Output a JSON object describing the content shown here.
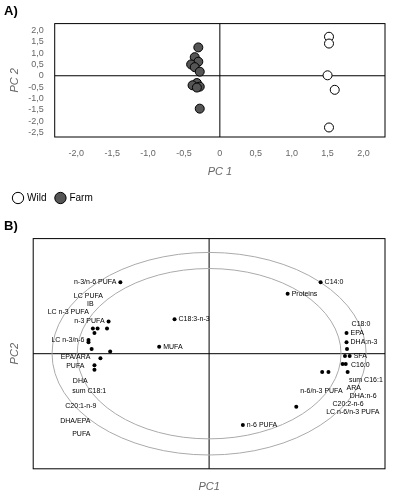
{
  "chart_data": [
    {
      "type": "scatter",
      "title": "A)",
      "xlabel": "PC 1",
      "ylabel": "PC 2",
      "series": [
        {
          "name": "Wild",
          "color": "#ffffff",
          "x": [
            1.52,
            1.52,
            1.5,
            1.6,
            1.52
          ],
          "values": [
            1.72,
            1.42,
            0.02,
            -0.62,
            -2.28
          ]
        },
        {
          "name": "Farm",
          "color": "#555555",
          "x": [
            -0.3,
            -0.35,
            -0.3,
            -0.4,
            -0.35,
            -0.28,
            -0.32,
            -0.38,
            -0.28,
            -0.32,
            -0.28
          ],
          "values": [
            1.25,
            0.82,
            0.62,
            0.5,
            0.38,
            0.18,
            -0.32,
            -0.42,
            -0.48,
            -0.52,
            -1.45
          ]
        }
      ],
      "xlim": [
        -2.3,
        2.3
      ],
      "xticks": [
        {
          "value": -2,
          "label": "-2,0"
        },
        {
          "value": -1.5,
          "label": "-1,5"
        },
        {
          "value": -1,
          "label": "-1,0"
        },
        {
          "value": -0.5,
          "label": "-0,5"
        },
        0,
        {
          "value": 0.5,
          "label": "0,5"
        },
        {
          "value": 1,
          "label": "1,0"
        },
        {
          "value": 1.5,
          "label": "1,5"
        },
        {
          "value": 2,
          "label": "2,0"
        }
      ],
      "ylim": [
        -2.7,
        2.3
      ],
      "yticks": [
        {
          "value": -2.5,
          "label": "-2,5"
        },
        {
          "value": -2,
          "label": "-2,0"
        },
        {
          "value": -1.5,
          "label": "-1,5"
        },
        {
          "value": -1,
          "label": "-1,0"
        },
        {
          "value": -0.5,
          "label": "-0,5"
        },
        0,
        {
          "value": 0.5,
          "label": "0,5"
        },
        {
          "value": 1,
          "label": "1,0"
        },
        {
          "value": 1.5,
          "label": "1,5"
        },
        {
          "value": 2,
          "label": "2,0"
        }
      ],
      "grid": false,
      "legend": "lower left"
    },
    {
      "type": "scatter",
      "title": "B)",
      "xlabel": "PC1",
      "ylabel": "PC2",
      "x": [
        0.71,
        0.5,
        0.875,
        0.875,
        0.878,
        0.865,
        0.895,
        0.85,
        0.87,
        0.76,
        0.72,
        0.882,
        0.555,
        0.215,
        -0.565,
        -0.64,
        -0.74,
        -0.71,
        -0.65,
        -0.73,
        -0.768,
        -0.768,
        -0.748,
        -0.63,
        -0.692,
        -0.73,
        -0.73,
        -0.22,
        -0.318
      ],
      "series": [
        {
          "color": "#000000",
          "values": [
            0.62,
            0.52,
            0.18,
            0.1,
            0.04,
            -0.02,
            -0.02,
            -0.09,
            -0.09,
            -0.16,
            -0.16,
            -0.16,
            -0.46,
            -0.62,
            0.62,
            0.28,
            0.22,
            0.22,
            0.22,
            0.18,
            0.12,
            0.1,
            0.04,
            0.02,
            -0.04,
            -0.1,
            -0.14,
            0.3,
            0.06
          ],
          "labels": [
            "C14:0",
            "Proteins",
            "EPA",
            "DHA:n-3",
            "C16:0",
            "sum C16:1",
            "SFA",
            "ARA",
            "DHA:n-6",
            "C20:2-n-6",
            "LC n-6/n-3 PUFA",
            "C18:0",
            "n-6/n-3 PUFA",
            "n-6 PUFA",
            "n-3/n-6 PUFA",
            "n-3 PUFA",
            "LC n-3 PUFA",
            "IB",
            "LC PUFA",
            "EPA/ARA",
            "LC n-3/n-6",
            "PUFA",
            "DHA",
            "sum C18:1",
            "C20:1-n-9",
            "DHA/EPA",
            "PUFA",
            "C18:3-n-3",
            "MUFA"
          ]
        }
      ],
      "xlim": [
        -1.12,
        1.12
      ],
      "ylim": [
        -1.0,
        1.0
      ],
      "ellipses": [
        {
          "a": 1.0,
          "b": 0.88,
          "color": "#aaaaaa"
        },
        {
          "a": 0.84,
          "b": 0.74,
          "color": "#aaaaaa"
        }
      ],
      "grid": false,
      "tick_labels": false
    }
  ]
}
